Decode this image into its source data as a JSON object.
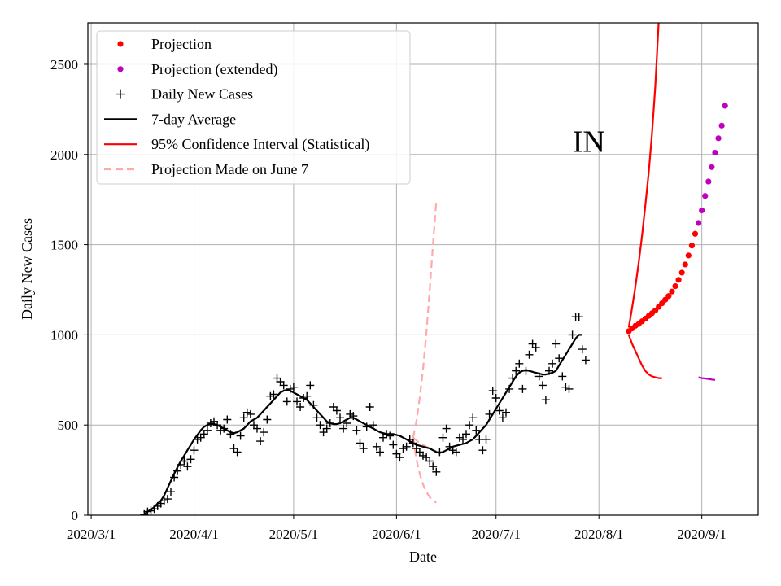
{
  "chart_data": {
    "type": "line",
    "annotation": "IN",
    "xlabel": "Date",
    "ylabel": "Daily New Cases",
    "x_ticks": [
      "2020/3/1",
      "2020/4/1",
      "2020/5/1",
      "2020/6/1",
      "2020/7/1",
      "2020/8/1",
      "2020/9/1"
    ],
    "x_tick_dates": [
      "2020-03-01",
      "2020-04-01",
      "2020-05-01",
      "2020-06-01",
      "2020-07-01",
      "2020-08-01",
      "2020-09-01"
    ],
    "xlim": [
      "2020-02-29",
      "2020-09-18"
    ],
    "y_ticks": [
      0,
      500,
      1000,
      1500,
      2000,
      2500
    ],
    "ylim": [
      0,
      2730
    ],
    "grid": true,
    "legend_position": "top-left",
    "legend": [
      {
        "label": "Projection",
        "kind": "dot",
        "color": "#ff0000"
      },
      {
        "label": "Projection (extended)",
        "kind": "dot",
        "color": "#bf00bf"
      },
      {
        "label": "Daily New Cases",
        "kind": "plus",
        "color": "#000000"
      },
      {
        "label": "7-day Average",
        "kind": "line",
        "color": "#000000"
      },
      {
        "label": "95% Confidence Interval (Statistical)",
        "kind": "line",
        "color": "#ff0000"
      },
      {
        "label": "Projection Made on June 7",
        "kind": "dash",
        "color": "#ffaaaa"
      }
    ],
    "series": [
      {
        "name": "Daily New Cases",
        "start_date": "2020-03-17",
        "values": [
          5,
          20,
          25,
          35,
          50,
          65,
          80,
          90,
          130,
          210,
          245,
          280,
          300,
          270,
          310,
          360,
          420,
          430,
          450,
          470,
          510,
          520,
          500,
          470,
          480,
          530,
          450,
          370,
          350,
          440,
          540,
          570,
          560,
          500,
          480,
          410,
          460,
          530,
          660,
          670,
          760,
          740,
          720,
          630,
          700,
          710,
          630,
          600,
          650,
          660,
          720,
          610,
          540,
          500,
          460,
          480,
          510,
          600,
          580,
          540,
          480,
          510,
          560,
          550,
          470,
          400,
          370,
          490,
          600,
          500,
          380,
          350,
          430,
          450,
          440,
          390,
          340,
          320,
          370,
          380,
          420,
          400,
          370,
          350,
          330,
          320,
          300,
          270,
          240,
          350,
          430,
          480,
          380,
          360,
          350,
          430,
          420,
          450,
          500,
          540,
          470,
          420,
          360,
          420,
          560,
          690,
          650,
          580,
          540,
          570,
          700,
          760,
          800,
          840,
          700,
          800,
          890,
          950,
          930,
          770,
          720,
          640,
          800,
          840,
          950,
          870,
          770,
          710,
          700,
          1000,
          1100,
          1100,
          920,
          860
        ]
      },
      {
        "name": "7-day Average",
        "start_date": "2020-03-17",
        "values": [
          5,
          20,
          30,
          45,
          65,
          80,
          110,
          150,
          190,
          230,
          265,
          300,
          330,
          360,
          390,
          420,
          445,
          470,
          490,
          500,
          505,
          505,
          500,
          490,
          480,
          470,
          460,
          455,
          460,
          470,
          480,
          500,
          520,
          530,
          540,
          560,
          580,
          600,
          620,
          640,
          660,
          680,
          690,
          695,
          690,
          680,
          670,
          660,
          650,
          640,
          620,
          600,
          580,
          560,
          540,
          520,
          510,
          505,
          505,
          510,
          520,
          530,
          540,
          540,
          530,
          520,
          510,
          500,
          490,
          480,
          470,
          460,
          455,
          450,
          450,
          450,
          445,
          440,
          430,
          420,
          410,
          400,
          390,
          385,
          380,
          375,
          370,
          360,
          350,
          345,
          350,
          360,
          370,
          380,
          385,
          390,
          395,
          400,
          410,
          420,
          440,
          460,
          480,
          500,
          530,
          560,
          590,
          620,
          650,
          680,
          710,
          740,
          770,
          790,
          800,
          805,
          800,
          795,
          790,
          785,
          780,
          780,
          785,
          790,
          800,
          830,
          860,
          890,
          920,
          950,
          980,
          1000,
          1000
        ]
      },
      {
        "name": "Projection",
        "start_date": "2020-08-10",
        "values": [
          1020,
          1035,
          1050,
          1060,
          1075,
          1090,
          1105,
          1120,
          1135,
          1155,
          1175,
          1195,
          1215,
          1240,
          1270,
          1305,
          1345,
          1390,
          1440,
          1495,
          1560
        ]
      },
      {
        "name": "Projection (extended)",
        "start_date": "2020-08-31",
        "values": [
          1620,
          1690,
          1770,
          1850,
          1930,
          2010,
          2090,
          2160,
          2270
        ]
      },
      {
        "name": "CI upper",
        "start_date": "2020-08-10",
        "values": [
          1040,
          1150,
          1270,
          1400,
          1550,
          1720,
          1900,
          2120,
          2380,
          2730
        ]
      },
      {
        "name": "CI lower",
        "start_date": "2020-08-10",
        "values": [
          1000,
          950,
          910,
          870,
          830,
          800,
          780,
          770,
          765,
          760,
          760
        ]
      },
      {
        "name": "CI extended lower",
        "start_date": "2020-08-31",
        "values": [
          765,
          760,
          758,
          755,
          752,
          750
        ]
      },
      {
        "name": "June 7 upper",
        "start_date": "2020-06-06",
        "values": [
          430,
          520,
          650,
          810,
          1010,
          1250,
          1500,
          1740
        ]
      },
      {
        "name": "June 7 middle",
        "start_date": "2020-06-06",
        "values": [
          430,
          415,
          400,
          390,
          380,
          370,
          360,
          355
        ]
      },
      {
        "name": "June 7 lower",
        "start_date": "2020-06-06",
        "values": [
          430,
          310,
          230,
          170,
          130,
          100,
          80,
          70
        ]
      }
    ]
  }
}
